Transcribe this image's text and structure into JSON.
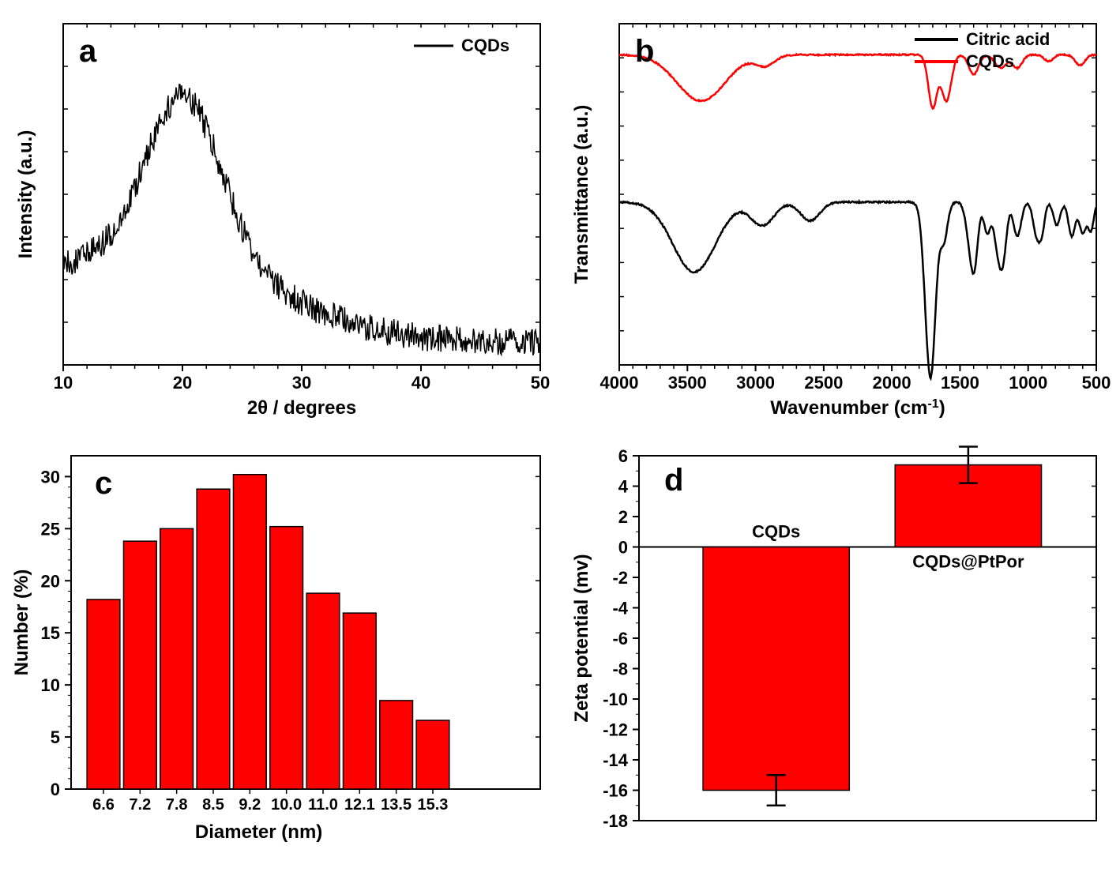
{
  "panel_a": {
    "type": "line",
    "letter": "a",
    "legend": [
      "CQDs"
    ],
    "line_colors": [
      "#000000"
    ],
    "xlabel": "2θ / degrees",
    "ylabel": "Intensity (a.u.)",
    "label_fontsize": 24,
    "xlim": [
      10,
      50
    ],
    "xticks": [
      10,
      20,
      30,
      40,
      50
    ],
    "background_color": "#ffffff",
    "xrd_peak_center": 20,
    "xrd_baseline": 0.05,
    "noise_level": 0.05,
    "line_width": 1.5
  },
  "panel_b": {
    "type": "line",
    "letter": "b",
    "legend": [
      "Citric acid",
      "CQDs"
    ],
    "line_colors": [
      "#000000",
      "#ff0000"
    ],
    "xlabel": "Wavenumber (cm⁻¹)",
    "ylabel": "Transmittance (a.u.)",
    "label_fontsize": 24,
    "xlim": [
      4000,
      500
    ],
    "xticks": [
      4000,
      3500,
      3000,
      2500,
      2000,
      1500,
      1000,
      500
    ],
    "background_color": "#ffffff",
    "line_width": 2.5
  },
  "panel_c": {
    "type": "bar",
    "letter": "c",
    "categories": [
      "6.6",
      "7.2",
      "7.8",
      "8.5",
      "9.2",
      "10.0",
      "11.0",
      "12.1",
      "13.5",
      "15.3"
    ],
    "values": [
      18.2,
      23.8,
      25.0,
      28.8,
      30.2,
      25.2,
      18.8,
      16.9,
      8.5,
      6.6
    ],
    "bar_color": "#ff0000",
    "bar_border": "#000000",
    "xlabel": "Diameter (nm)",
    "ylabel": "Number (%)",
    "label_fontsize": 24,
    "ylim": [
      0,
      30
    ],
    "yticks": [
      0,
      5,
      10,
      15,
      20,
      25,
      30
    ],
    "background_color": "#ffffff",
    "bar_width": 0.9
  },
  "panel_d": {
    "type": "bar",
    "letter": "d",
    "categories": [
      "CQDs",
      "CQDs@PtPor"
    ],
    "values": [
      -16.0,
      5.4
    ],
    "errors": [
      1.0,
      1.2
    ],
    "bar_color": "#ff0000",
    "bar_border": "#000000",
    "xlabel": "",
    "ylabel": "Zeta potential (mv)",
    "label_fontsize": 24,
    "ylim": [
      -18,
      6
    ],
    "yticks": [
      -18,
      -16,
      -14,
      -12,
      -10,
      -8,
      -6,
      -4,
      -2,
      0,
      2,
      4,
      6
    ],
    "background_color": "#ffffff",
    "bar_width": 0.6,
    "error_color": "#000000"
  }
}
